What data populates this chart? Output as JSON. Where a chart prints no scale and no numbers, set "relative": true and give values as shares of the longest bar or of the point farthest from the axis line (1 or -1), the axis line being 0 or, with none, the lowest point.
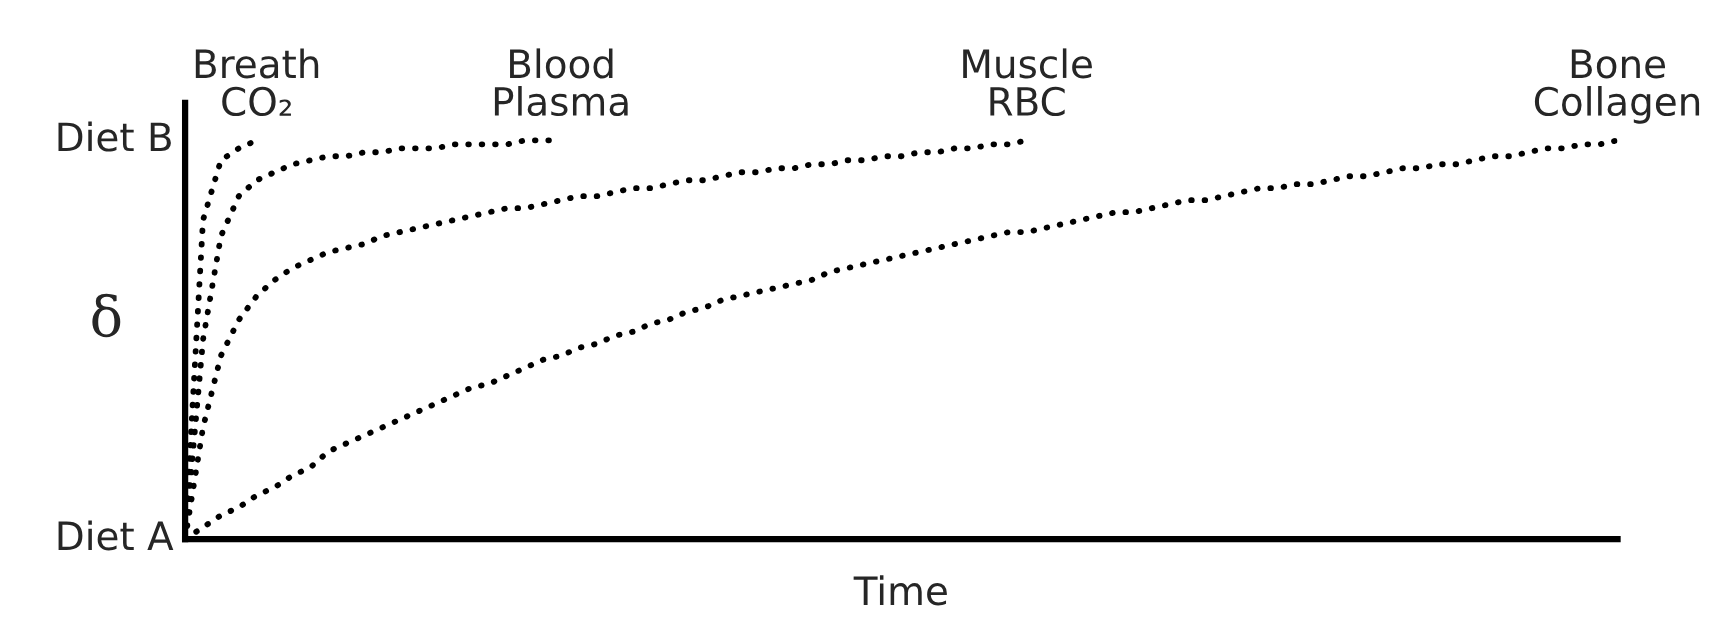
{
  "chart_data": {
    "type": "line",
    "xlabel": "Time",
    "ylabel": "δ",
    "categories": [
      null,
      null,
      null,
      null,
      null,
      null,
      null,
      null,
      null,
      null,
      null,
      null,
      null,
      null,
      null,
      null,
      null,
      null,
      null,
      null,
      null,
      null,
      null,
      null,
      null,
      null,
      null,
      null,
      null,
      null,
      null,
      null,
      null,
      null,
      null,
      null,
      null,
      null,
      null,
      null,
      null,
      null,
      null,
      null,
      null,
      null,
      null,
      null,
      null,
      null,
      null,
      null,
      null,
      null,
      null,
      null,
      null,
      null,
      null,
      null,
      null,
      null,
      null,
      null,
      null,
      null,
      null,
      null,
      null,
      null,
      null,
      null,
      null,
      null,
      null,
      null,
      null,
      null,
      null,
      null,
      null
    ],
    "relative": true,
    "annotations": [
      "Diet A",
      "Diet B"
    ],
    "line_style": "dotted",
    "marker": "none",
    "grid": false,
    "legend": false,
    "series": [
      {
        "name": "Breath\nCO₂",
        "color": "#000000",
        "values": [
          0,
          0.8,
          0.95,
          0.98,
          1.0,
          null,
          null,
          null,
          null,
          null,
          null,
          null,
          null,
          null,
          null,
          null,
          null,
          null,
          null,
          null,
          null,
          null,
          null,
          null,
          null,
          null,
          null,
          null,
          null,
          null,
          null,
          null,
          null,
          null,
          null,
          null,
          null,
          null,
          null,
          null,
          null,
          null,
          null,
          null,
          null,
          null,
          null,
          null,
          null,
          null,
          null,
          null,
          null,
          null,
          null,
          null,
          null,
          null,
          null,
          null,
          null,
          null,
          null,
          null,
          null,
          null,
          null,
          null,
          null,
          null,
          null,
          null,
          null,
          null,
          null,
          null,
          null,
          null,
          null,
          null,
          null
        ]
      },
      {
        "name": "Blood\nPlasma",
        "color": "#000000",
        "values": [
          0,
          0.5,
          0.76,
          0.86,
          0.9,
          0.92,
          0.94,
          0.95,
          0.96,
          0.96,
          0.97,
          0.97,
          0.98,
          0.98,
          0.98,
          0.99,
          0.99,
          0.99,
          0.99,
          1.0,
          1.0,
          1.0,
          null,
          null,
          null,
          null,
          null,
          null,
          null,
          null,
          null,
          null,
          null,
          null,
          null,
          null,
          null,
          null,
          null,
          null,
          null,
          null,
          null,
          null,
          null,
          null,
          null,
          null,
          null,
          null,
          null,
          null,
          null,
          null,
          null,
          null,
          null,
          null,
          null,
          null,
          null,
          null,
          null,
          null,
          null,
          null,
          null,
          null,
          null,
          null,
          null,
          null,
          null,
          null,
          null,
          null,
          null,
          null,
          null,
          null,
          null
        ]
      },
      {
        "name": "Muscle\nRBC",
        "color": "#000000",
        "values": [
          0,
          0.28,
          0.46,
          0.55,
          0.61,
          0.65,
          0.68,
          0.7,
          0.72,
          0.73,
          0.74,
          0.76,
          0.77,
          0.78,
          0.79,
          0.8,
          0.81,
          0.82,
          0.83,
          0.83,
          0.84,
          0.85,
          0.86,
          0.86,
          0.87,
          0.88,
          0.88,
          0.89,
          0.9,
          0.9,
          0.91,
          0.92,
          0.92,
          0.93,
          0.93,
          0.94,
          0.94,
          0.95,
          0.95,
          0.96,
          0.96,
          0.97,
          0.97,
          0.98,
          0.98,
          0.99,
          0.99,
          1.0,
          null,
          null,
          null,
          null,
          null,
          null,
          null,
          null,
          null,
          null,
          null,
          null,
          null,
          null,
          null,
          null,
          null,
          null,
          null,
          null,
          null,
          null,
          null,
          null,
          null,
          null,
          null,
          null,
          null,
          null,
          null,
          null,
          null
        ]
      },
      {
        "name": "Bone\nCollagen",
        "color": "#000000",
        "values": [
          0,
          0.03,
          0.06,
          0.08,
          0.11,
          0.13,
          0.16,
          0.18,
          0.22,
          0.24,
          0.26,
          0.28,
          0.3,
          0.32,
          0.34,
          0.36,
          0.38,
          0.39,
          0.41,
          0.43,
          0.45,
          0.46,
          0.48,
          0.49,
          0.51,
          0.52,
          0.54,
          0.55,
          0.57,
          0.58,
          0.6,
          0.61,
          0.62,
          0.63,
          0.64,
          0.65,
          0.67,
          0.68,
          0.69,
          0.7,
          0.71,
          0.72,
          0.73,
          0.74,
          0.75,
          0.76,
          0.77,
          0.77,
          0.78,
          0.79,
          0.8,
          0.81,
          0.82,
          0.82,
          0.83,
          0.84,
          0.85,
          0.85,
          0.86,
          0.87,
          0.88,
          0.88,
          0.89,
          0.89,
          0.9,
          0.91,
          0.91,
          0.92,
          0.93,
          0.93,
          0.94,
          0.94,
          0.95,
          0.96,
          0.96,
          0.97,
          0.98,
          0.98,
          0.99,
          0.99,
          1.0
        ]
      }
    ]
  }
}
